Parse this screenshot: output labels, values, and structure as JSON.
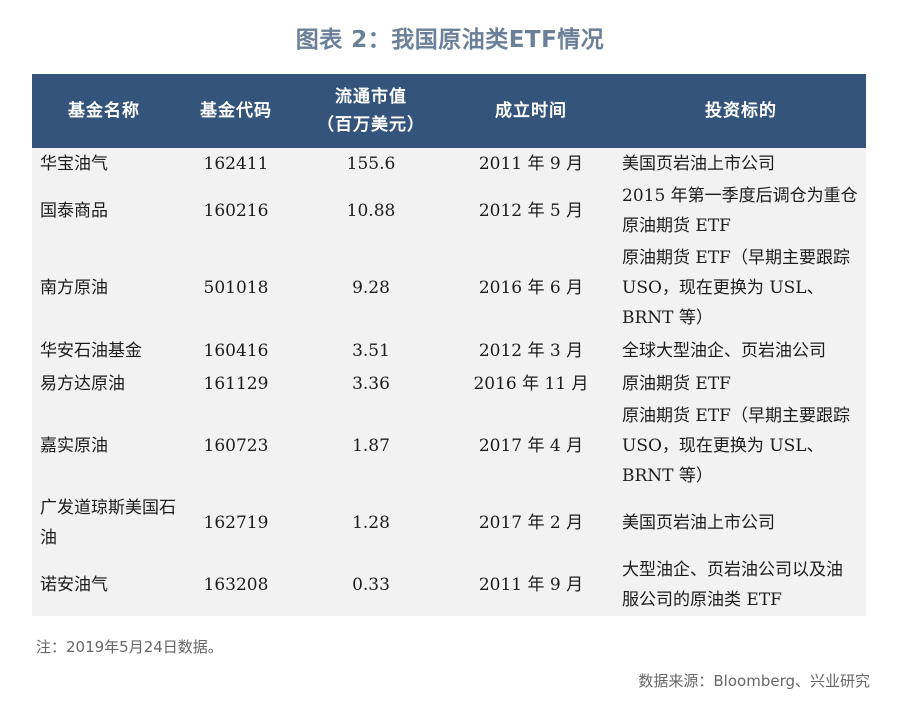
{
  "title": "图表 2：我国原油类ETF情况",
  "columns": {
    "name": "基金名称",
    "code": "基金代码",
    "mcap_line1": "流通市值",
    "mcap_line2": "（百万美元）",
    "date": "成立时间",
    "target": "投资标的"
  },
  "rows": [
    {
      "name": "华宝油气",
      "code": "162411",
      "mcap": "155.6",
      "date": "2011 年 9 月",
      "target": "美国页岩油上市公司"
    },
    {
      "name": "国泰商品",
      "code": "160216",
      "mcap": "10.88",
      "date": "2012 年 5 月",
      "target": "2015 年第一季度后调仓为重仓原油期货 ETF"
    },
    {
      "name": "南方原油",
      "code": "501018",
      "mcap": "9.28",
      "date": "2016 年 6 月",
      "target": "原油期货 ETF（早期主要跟踪 USO，现在更换为 USL、BRNT 等）"
    },
    {
      "name": "华安石油基金",
      "code": "160416",
      "mcap": "3.51",
      "date": "2012 年 3 月",
      "target": "全球大型油企、页岩油公司"
    },
    {
      "name": "易方达原油",
      "code": "161129",
      "mcap": "3.36",
      "date": "2016 年 11 月",
      "target": "原油期货 ETF"
    },
    {
      "name": "嘉实原油",
      "code": "160723",
      "mcap": "1.87",
      "date": "2017 年 4 月",
      "target": "原油期货 ETF（早期主要跟踪 USO，现在更换为 USL、BRNT 等）"
    },
    {
      "name": "广发道琼斯美国石油",
      "code": "162719",
      "mcap": "1.28",
      "date": "2017 年 2 月",
      "target": "美国页岩油上市公司"
    },
    {
      "name": "诺安油气",
      "code": "163208",
      "mcap": "0.33",
      "date": "2011 年 9 月",
      "target": "大型油企、页岩油公司以及油服公司的原油类 ETF"
    }
  ],
  "note": "注：2019年5月24日数据。",
  "source": "数据来源：Bloomberg、兴业研究",
  "colors": {
    "header_bg": "#34547c",
    "title": "#6b8098",
    "row_bg": "#f2f2f2"
  }
}
